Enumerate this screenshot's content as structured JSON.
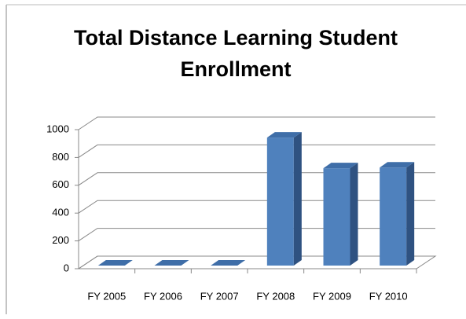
{
  "chart_data": {
    "type": "bar3d",
    "title": "Total Distance Learning Student Enrollment",
    "categories": [
      "FY 2005",
      "FY 2006",
      "FY 2007",
      "FY 2008",
      "FY 2009",
      "FY 2010"
    ],
    "values": [
      0,
      0,
      0,
      920,
      700,
      705
    ],
    "color": "#4f81bd",
    "ylim": [
      0,
      1000
    ],
    "yticks": [
      0,
      200,
      400,
      600,
      800,
      1000
    ],
    "grid": true
  }
}
